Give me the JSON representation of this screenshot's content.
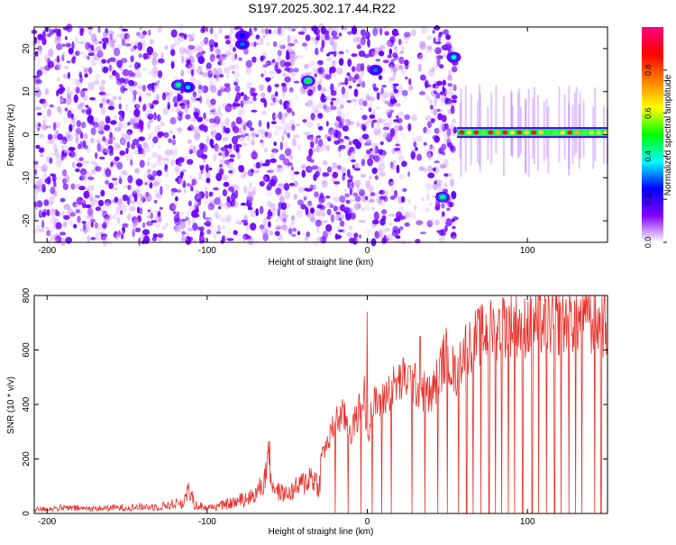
{
  "page": {
    "title": "S197.2025.302.17.44.R22"
  },
  "colors": {
    "trace": "#e8302a",
    "axis": "#000000",
    "colorbar": [
      "#ffffff",
      "#8000ff",
      "#0000ff",
      "#00ffff",
      "#00ff00",
      "#ffff00",
      "#ff8000",
      "#ff0000",
      "#ff0080"
    ]
  },
  "chart_data": [
    {
      "type": "heatmap",
      "title": "S197.2025.302.17.44.R22",
      "xlabel": "Height of straight line (km)",
      "ylabel": "Frequency (Hz)",
      "xlim": [
        -208,
        150
      ],
      "ylim": [
        -25,
        25
      ],
      "xticks": [
        -200,
        -100,
        0,
        100
      ],
      "xtick_labels": [
        "-200",
        "-100",
        "0",
        "100"
      ],
      "yticks": [
        -20,
        -10,
        0,
        10,
        20
      ],
      "ytick_labels": [
        "-20",
        "-10",
        "0",
        "10",
        "20"
      ],
      "colorbar": {
        "label": "Normalized spectral amplitude",
        "range": [
          0,
          1
        ],
        "ticks": [
          0.0,
          0.2,
          0.4,
          0.6,
          0.8
        ],
        "tick_labels": [
          "0.0",
          "0.2",
          "0.4",
          "0.6",
          "0.8"
        ]
      },
      "features": [
        {
          "x": -118,
          "y": 11.5,
          "amplitude": 0.45
        },
        {
          "x": -112,
          "y": 11,
          "amplitude": 0.35
        },
        {
          "x": -78,
          "y": 21,
          "amplitude": 0.3
        },
        {
          "x": -78,
          "y": 23,
          "amplitude": 0.25
        },
        {
          "x": -37,
          "y": 12.5,
          "amplitude": 0.5
        },
        {
          "x": 5,
          "y": 15,
          "amplitude": 0.3
        },
        {
          "x": 47,
          "y": -14.5,
          "amplitude": 0.45
        },
        {
          "x": 54,
          "y": 18,
          "amplitude": 0.4
        }
      ],
      "band": {
        "x_start": 56,
        "x_end": 150,
        "y": 0.5,
        "amplitude": 0.85
      },
      "blank_region_x_start": 55
    },
    {
      "type": "line",
      "xlabel": "Height of straight line (km)",
      "ylabel": "SNR (10 * v/v)",
      "xlim": [
        -208,
        150
      ],
      "ylim": [
        0,
        800
      ],
      "xticks": [
        -200,
        -100,
        0,
        100
      ],
      "xtick_labels": [
        "-200",
        "-100",
        "0",
        "100"
      ],
      "yticks": [
        0,
        200,
        400,
        600,
        800
      ],
      "ytick_labels": [
        "0",
        "200",
        "400",
        "600",
        "800"
      ],
      "series": [
        {
          "x": [
            -208,
            -190,
            -170,
            -150,
            -130,
            -115,
            -112,
            -108,
            -100,
            -90,
            -80,
            -70,
            -64,
            -62,
            -60,
            -56,
            -50,
            -45,
            -40,
            -35,
            -30,
            -28,
            -25,
            -20,
            -15,
            -10,
            -5,
            -2,
            0,
            2,
            5,
            10,
            15,
            20,
            25,
            30,
            35,
            40,
            45,
            50,
            55,
            60,
            70,
            80,
            90,
            100,
            110,
            120,
            130,
            140,
            150
          ],
          "y": [
            15,
            20,
            18,
            22,
            25,
            40,
            85,
            35,
            20,
            30,
            45,
            70,
            120,
            250,
            120,
            80,
            70,
            90,
            110,
            140,
            100,
            230,
            250,
            340,
            360,
            300,
            380,
            450,
            250,
            380,
            400,
            420,
            460,
            480,
            500,
            470,
            450,
            430,
            520,
            600,
            500,
            600,
            650,
            680,
            700,
            690,
            700,
            700,
            710,
            700,
            690
          ],
          "spikes": [
            {
              "x": 0,
              "y": 740
            },
            {
              "x": 33,
              "y": 650
            },
            {
              "x": 85,
              "y": 790
            },
            {
              "x": 138,
              "y": 795
            }
          ],
          "dropouts_to_zero": [
            -20,
            -12,
            -4,
            3,
            9,
            15,
            28,
            36,
            44,
            50,
            57,
            62,
            66,
            71,
            76,
            80,
            84,
            88,
            92,
            97,
            103,
            107,
            112,
            117,
            121,
            126,
            130,
            134,
            138,
            142,
            146
          ]
        }
      ]
    }
  ]
}
